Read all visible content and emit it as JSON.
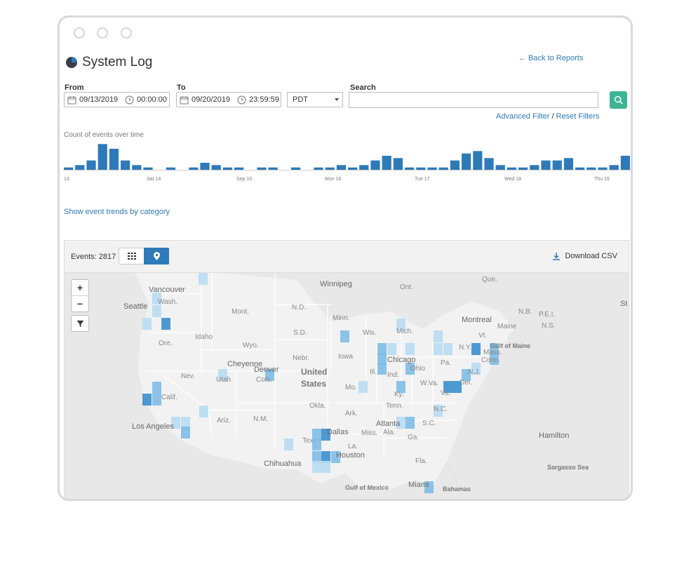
{
  "header": {
    "title": "System Log",
    "back_link": "← Back to Reports",
    "icon": "pie-chart-icon"
  },
  "filters": {
    "from_label": "From",
    "from_date": "09/13/2019",
    "from_time": "00:00:00",
    "to_label": "To",
    "to_date": "09/20/2019",
    "to_time": "23:59:59",
    "timezone": "PDT",
    "search_label": "Search",
    "search_value": "",
    "advanced_filter": "Advanced Filter",
    "separator": "/",
    "reset_filters": "Reset Filters"
  },
  "chart_data": {
    "type": "bar",
    "title": "Count of events over time",
    "x_tick_labels": [
      "13",
      "Sat 14",
      "Sep 15",
      "Mon 16",
      "Tue 17",
      "Wed 18",
      "Thu 19"
    ],
    "values": [
      1,
      2,
      4,
      11,
      9,
      4,
      2,
      1,
      0,
      1,
      0,
      1,
      3,
      2,
      1,
      1,
      0,
      1,
      1,
      0,
      1,
      0,
      1,
      1,
      2,
      1,
      2,
      4,
      6,
      5,
      1,
      1,
      1,
      1,
      4,
      7,
      8,
      5,
      2,
      1,
      1,
      2,
      4,
      4,
      5,
      1,
      1,
      1,
      2,
      6
    ],
    "ylim": [
      0,
      12
    ],
    "colors": {
      "bar": "#2e7ab8"
    }
  },
  "trend_link": "Show event trends by category",
  "events_panel": {
    "events_count": "Events: 2817",
    "download": "Download CSV",
    "views": [
      "grid-icon",
      "map-pin-icon"
    ]
  },
  "map": {
    "zoom_in": "+",
    "zoom_out": "−",
    "labels": {
      "vancouver": "Vancouver",
      "seattle": "Seattle",
      "wash": "Wash.",
      "ore": "Ore.",
      "idaho": "Idaho",
      "mont": "Mont.",
      "wyo": "Wyo.",
      "nd": "N.D.",
      "sd": "S.D.",
      "nebr": "Nebr.",
      "minn": "Minn.",
      "iowa": "Iowa",
      "wis": "Wis.",
      "mich": "Mich.",
      "winnipeg": "Winnipeg",
      "ont": "Ont.",
      "que": "Que.",
      "montreal": "Montreal",
      "maine": "Maine",
      "vt": "Vt.",
      "nb": "N.B.",
      "pei": "P.E.I.",
      "ns": "N.S.",
      "gulf_maine": "Gulf of Maine",
      "ny": "N.Y.",
      "mass": "Mass.",
      "conn": "Conn.",
      "nj": "N.J.",
      "pa": "Pa.",
      "ohio": "Ohio",
      "chicago": "Chicago",
      "ill": "Ill.",
      "ind": "Ind.",
      "wva": "W.Va.",
      "del": "Del.",
      "va": "Va.",
      "ky": "Ky.",
      "mo": "Mo.",
      "cheyenne": "Cheyenne",
      "denver": "Denver",
      "colo": "Colo.",
      "utah": "Utah",
      "nev": "Nev.",
      "calif": "Calif.",
      "la": "Los Angeles",
      "ariz": "Ariz.",
      "nm": "N.M.",
      "united": "United",
      "states": "States",
      "okla": "Okla.",
      "ark": "Ark.",
      "tenn": "Tenn.",
      "nc": "N.C.",
      "sc": "S.C.",
      "atlanta": "Atlanta",
      "ala": "Ala.",
      "miss": "Miss.",
      "ga": "Ga.",
      "tex": "Tex.",
      "dallas": "Dallas",
      "houston": "Houston",
      "la_state": "La.",
      "chihuahua": "Chihuahua",
      "fla": "Fla.",
      "miami": "Miami",
      "bahamas": "Bahamas",
      "gulf_mexico": "Gulf of Mexico",
      "hamilton": "Hamilton",
      "sargasso": "Sargasso Sea",
      "st": "St"
    },
    "colors": {
      "heat_light": "#b8dcf2",
      "heat_mid": "#7fbde6",
      "heat_dark": "#3d8fcf"
    }
  }
}
